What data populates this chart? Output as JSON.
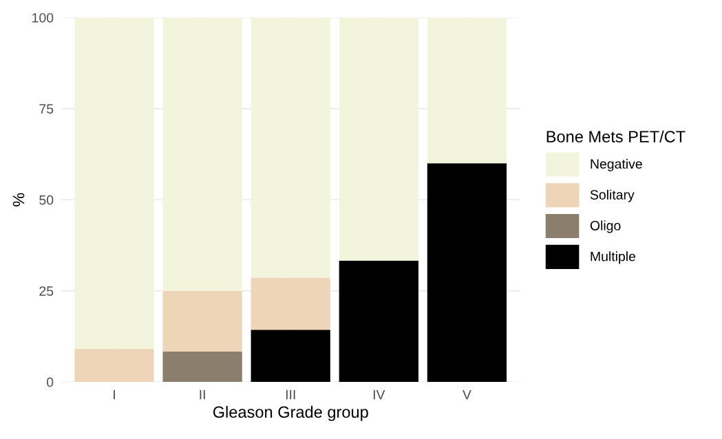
{
  "chart_data": {
    "type": "bar",
    "stacked": true,
    "xlabel": "Gleason Grade group",
    "ylabel": "%",
    "legend_title": "Bone Mets PET/CT",
    "categories": [
      "I",
      "II",
      "III",
      "IV",
      "V"
    ],
    "series": [
      {
        "name": "Multiple",
        "color": "#000000",
        "values": [
          0,
          0,
          14.3,
          33.3,
          60
        ]
      },
      {
        "name": "Oligo",
        "color": "#8b7e6c",
        "values": [
          0,
          8.3,
          0,
          0,
          0
        ]
      },
      {
        "name": "Solitary",
        "color": "#eed5b7",
        "values": [
          9.1,
          16.7,
          14.3,
          0,
          0
        ]
      },
      {
        "name": "Negative",
        "color": "#f3f4dc",
        "values": [
          90.9,
          75,
          71.4,
          66.7,
          40
        ]
      }
    ],
    "ylim": [
      0,
      100
    ],
    "yticks": [
      0,
      25,
      50,
      75,
      100
    ],
    "grid": true,
    "legend": "right"
  }
}
